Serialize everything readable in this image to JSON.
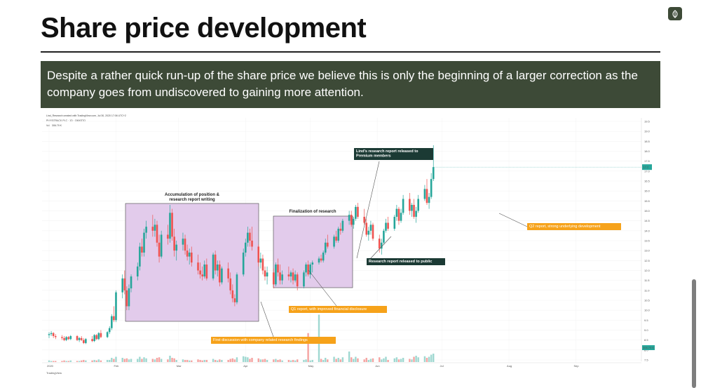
{
  "slide": {
    "title": "Share price development",
    "subtitle": "Despite a rather quick run-up of the share price we believe this is only the beginning of a larger correction as the company goes from undiscovered to gaining more attention."
  },
  "chart_data": {
    "type": "candlestick",
    "header_line1": "Lind_Research created with TradingView.com, Jul 30, 2020 17:06 UTC+2",
    "header_line2": "PHYSITRACK PLC · 1D · OMXSTO",
    "volume_label": "Vol",
    "volume_value": "306.79 K",
    "last_price_tag": "17.2",
    "last_volume_tag": "306.79 K",
    "watermark": "TradingView",
    "ylim": [
      7.5,
      19.5
    ],
    "y_ticks": [
      "19.5",
      "19.0",
      "18.5",
      "18.0",
      "17.5",
      "17.0",
      "16.5",
      "16.0",
      "15.5",
      "15.0",
      "14.5",
      "14.0",
      "13.5",
      "13.0",
      "12.5",
      "12.0",
      "11.5",
      "11.0",
      "10.5",
      "10.0",
      "9.5",
      "9.0",
      "8.5",
      "8.0",
      "7.5"
    ],
    "x_ticks": [
      {
        "label": "2020",
        "day": 0
      },
      {
        "label": "Feb",
        "day": 31
      },
      {
        "label": "Mar",
        "day": 60
      },
      {
        "label": "Apr",
        "day": 91
      },
      {
        "label": "May",
        "day": 121
      },
      {
        "label": "Jun",
        "day": 152
      },
      {
        "label": "Jul",
        "day": 182
      },
      {
        "label": "Aug",
        "day": 213
      },
      {
        "label": "Sep",
        "day": 244
      }
    ],
    "colors": {
      "up": "#26a69a",
      "down": "#ef5350",
      "vol_up": "#9fd8d1",
      "vol_down": "#f5a3a1",
      "box": "#e2cbeb",
      "box_border": "#444444",
      "dark_note": "#1b3a34",
      "orange_note": "#f6a21a"
    },
    "candles": [
      [
        0,
        8.75,
        8.9,
        8.6,
        8.8
      ],
      [
        1,
        8.8,
        8.95,
        8.7,
        8.85
      ],
      [
        2,
        8.85,
        8.9,
        8.6,
        8.7
      ],
      [
        3,
        8.7,
        8.8,
        8.55,
        8.65
      ],
      [
        6,
        8.65,
        8.75,
        8.5,
        8.6
      ],
      [
        7,
        8.6,
        8.7,
        8.45,
        8.5
      ],
      [
        8,
        8.5,
        8.7,
        8.45,
        8.65
      ],
      [
        9,
        8.65,
        8.7,
        8.5,
        8.55
      ],
      [
        10,
        8.55,
        8.75,
        8.5,
        8.7
      ],
      [
        13,
        8.7,
        8.75,
        8.45,
        8.5
      ],
      [
        14,
        8.5,
        8.65,
        8.4,
        8.6
      ],
      [
        15,
        8.6,
        8.7,
        8.45,
        8.5
      ],
      [
        16,
        8.5,
        8.6,
        8.3,
        8.35
      ],
      [
        17,
        8.35,
        8.6,
        8.3,
        8.55
      ],
      [
        20,
        8.55,
        8.7,
        8.4,
        8.45
      ],
      [
        21,
        8.45,
        8.8,
        8.4,
        8.75
      ],
      [
        22,
        8.75,
        8.8,
        8.5,
        8.55
      ],
      [
        23,
        8.55,
        8.9,
        8.5,
        8.85
      ],
      [
        24,
        8.85,
        9.0,
        8.6,
        8.65
      ],
      [
        27,
        8.65,
        8.95,
        8.6,
        8.9
      ],
      [
        28,
        8.9,
        9.2,
        8.8,
        9.1
      ],
      [
        29,
        9.1,
        9.8,
        9.0,
        9.7
      ],
      [
        30,
        9.7,
        10.2,
        9.4,
        9.5
      ],
      [
        31,
        9.5,
        11.0,
        9.4,
        10.9
      ],
      [
        34,
        10.9,
        11.8,
        10.6,
        11.6
      ],
      [
        35,
        11.6,
        12.0,
        10.8,
        11.0
      ],
      [
        36,
        11.0,
        11.2,
        10.0,
        10.2
      ],
      [
        37,
        10.2,
        11.3,
        10.0,
        11.1
      ],
      [
        38,
        11.1,
        11.8,
        10.9,
        11.7
      ],
      [
        41,
        11.7,
        12.4,
        11.5,
        12.2
      ],
      [
        42,
        12.2,
        13.4,
        12.0,
        13.2
      ],
      [
        43,
        13.2,
        13.6,
        12.7,
        12.9
      ],
      [
        44,
        12.9,
        14.1,
        12.7,
        13.9
      ],
      [
        45,
        13.9,
        14.5,
        13.6,
        14.2
      ],
      [
        48,
        14.2,
        14.8,
        13.7,
        14.0
      ],
      [
        49,
        14.0,
        14.6,
        13.7,
        14.3
      ],
      [
        50,
        14.3,
        14.5,
        13.2,
        13.4
      ],
      [
        51,
        13.4,
        13.8,
        12.4,
        12.7
      ],
      [
        52,
        12.7,
        14.0,
        12.6,
        13.8
      ],
      [
        55,
        13.8,
        14.3,
        13.3,
        13.6
      ],
      [
        56,
        13.6,
        15.3,
        13.4,
        14.9
      ],
      [
        57,
        14.9,
        15.1,
        13.5,
        13.7
      ],
      [
        58,
        13.7,
        14.1,
        12.7,
        13.0
      ],
      [
        59,
        13.0,
        13.5,
        12.5,
        13.3
      ],
      [
        62,
        13.3,
        13.9,
        13.0,
        13.6
      ],
      [
        63,
        13.6,
        13.8,
        12.8,
        13.0
      ],
      [
        64,
        13.0,
        13.3,
        12.5,
        12.7
      ],
      [
        65,
        12.7,
        13.1,
        12.3,
        12.9
      ],
      [
        66,
        12.9,
        13.2,
        12.2,
        12.4
      ],
      [
        69,
        12.4,
        12.8,
        11.8,
        12.0
      ],
      [
        70,
        12.0,
        12.4,
        11.6,
        11.8
      ],
      [
        71,
        11.8,
        12.2,
        11.5,
        11.7
      ],
      [
        72,
        11.7,
        12.5,
        11.6,
        12.3
      ],
      [
        73,
        12.3,
        12.6,
        11.5,
        11.6
      ],
      [
        76,
        11.6,
        12.9,
        11.5,
        12.8
      ],
      [
        77,
        12.8,
        13.0,
        11.8,
        12.0
      ],
      [
        78,
        12.0,
        12.5,
        11.7,
        12.3
      ],
      [
        79,
        12.3,
        12.5,
        11.2,
        11.4
      ],
      [
        80,
        11.4,
        12.2,
        11.3,
        12.1
      ],
      [
        83,
        12.1,
        12.4,
        11.4,
        11.6
      ],
      [
        84,
        11.6,
        11.9,
        10.8,
        11.0
      ],
      [
        85,
        11.0,
        11.3,
        10.4,
        10.6
      ],
      [
        86,
        10.6,
        10.8,
        10.2,
        10.4
      ],
      [
        87,
        10.4,
        11.9,
        10.3,
        11.8
      ],
      [
        90,
        11.8,
        13.1,
        11.7,
        12.9
      ],
      [
        91,
        12.9,
        13.6,
        12.7,
        13.4
      ],
      [
        92,
        13.4,
        14.2,
        13.2,
        13.9
      ],
      [
        93,
        13.9,
        14.1,
        13.2,
        13.5
      ],
      [
        94,
        13.5,
        14.2,
        13.0,
        13.2
      ],
      [
        97,
        13.2,
        13.3,
        12.2,
        12.4
      ],
      [
        98,
        12.4,
        12.9,
        12.1,
        12.6
      ],
      [
        99,
        12.6,
        12.8,
        11.8,
        12.0
      ],
      [
        100,
        12.0,
        12.2,
        11.5,
        11.7
      ],
      [
        101,
        11.7,
        12.2,
        11.3,
        11.9
      ],
      [
        104,
        11.9,
        12.1,
        11.1,
        11.3
      ],
      [
        105,
        11.3,
        12.4,
        11.2,
        12.3
      ],
      [
        106,
        12.3,
        12.6,
        11.7,
        11.9
      ],
      [
        107,
        11.9,
        12.3,
        11.3,
        11.5
      ],
      [
        108,
        11.5,
        12.0,
        11.3,
        11.8
      ],
      [
        111,
        11.8,
        12.2,
        11.5,
        11.7
      ],
      [
        112,
        11.7,
        12.0,
        11.4,
        11.9
      ],
      [
        113,
        11.9,
        12.1,
        11.3,
        11.5
      ],
      [
        114,
        11.5,
        12.0,
        11.4,
        11.8
      ],
      [
        115,
        11.8,
        11.9,
        11.0,
        11.2
      ],
      [
        118,
        11.2,
        12.0,
        11.1,
        11.9
      ],
      [
        119,
        11.9,
        12.4,
        11.7,
        12.3
      ],
      [
        120,
        12.3,
        12.5,
        11.7,
        11.8
      ],
      [
        121,
        11.8,
        12.4,
        11.6,
        12.3
      ],
      [
        122,
        12.3,
        12.5,
        11.9,
        12.4
      ],
      [
        125,
        12.4,
        12.7,
        12.3,
        12.6
      ],
      [
        126,
        12.6,
        12.8,
        12.4,
        12.5
      ],
      [
        127,
        12.5,
        13.0,
        12.4,
        12.9
      ],
      [
        128,
        12.9,
        13.6,
        12.8,
        13.4
      ],
      [
        129,
        13.4,
        13.8,
        13.1,
        13.2
      ],
      [
        132,
        13.2,
        13.8,
        13.1,
        13.7
      ],
      [
        133,
        13.7,
        14.0,
        13.4,
        13.5
      ],
      [
        134,
        13.5,
        14.2,
        13.4,
        14.1
      ],
      [
        135,
        14.1,
        14.4,
        13.8,
        14.0
      ],
      [
        136,
        14.0,
        14.6,
        13.9,
        14.5
      ],
      [
        139,
        14.5,
        15.0,
        14.3,
        14.8
      ],
      [
        140,
        14.8,
        15.0,
        14.2,
        14.3
      ],
      [
        141,
        14.3,
        14.7,
        14.1,
        14.6
      ],
      [
        142,
        14.6,
        15.3,
        14.5,
        15.2
      ],
      [
        143,
        15.2,
        15.4,
        14.6,
        14.7
      ],
      [
        146,
        14.7,
        15.1,
        14.3,
        14.4
      ],
      [
        147,
        14.4,
        14.6,
        13.7,
        13.8
      ],
      [
        148,
        13.8,
        14.2,
        13.5,
        14.0
      ],
      [
        149,
        14.0,
        14.5,
        13.8,
        14.3
      ],
      [
        150,
        14.3,
        14.4,
        13.5,
        13.6
      ],
      [
        153,
        13.6,
        13.8,
        12.9,
        13.1
      ],
      [
        154,
        13.1,
        13.6,
        12.8,
        13.4
      ],
      [
        155,
        13.4,
        14.1,
        13.3,
        14.0
      ],
      [
        156,
        14.0,
        14.6,
        13.9,
        14.4
      ],
      [
        157,
        14.4,
        14.7,
        14.0,
        14.1
      ],
      [
        160,
        14.1,
        14.8,
        14.0,
        14.7
      ],
      [
        161,
        14.7,
        15.3,
        14.5,
        15.1
      ],
      [
        162,
        15.1,
        15.2,
        14.3,
        14.5
      ],
      [
        163,
        14.5,
        15.1,
        14.4,
        14.9
      ],
      [
        164,
        14.9,
        15.8,
        14.8,
        15.6
      ],
      [
        167,
        15.6,
        15.9,
        14.8,
        15.0
      ],
      [
        168,
        15.0,
        15.4,
        14.7,
        15.3
      ],
      [
        169,
        15.3,
        15.6,
        14.6,
        14.7
      ],
      [
        170,
        14.7,
        15.2,
        14.4,
        15.0
      ],
      [
        171,
        15.0,
        15.8,
        14.9,
        15.6
      ],
      [
        174,
        15.6,
        16.3,
        15.5,
        16.1
      ],
      [
        175,
        16.1,
        16.6,
        15.3,
        15.4
      ],
      [
        176,
        15.4,
        15.9,
        15.1,
        15.7
      ],
      [
        177,
        15.7,
        16.9,
        15.6,
        16.6
      ],
      [
        178,
        16.6,
        18.3,
        16.5,
        17.2
      ]
    ],
    "volumes": [
      [
        0,
        3,
        1
      ],
      [
        1,
        2,
        1
      ],
      [
        2,
        2,
        0
      ],
      [
        3,
        2,
        0
      ],
      [
        6,
        2,
        0
      ],
      [
        7,
        3,
        0
      ],
      [
        8,
        2,
        1
      ],
      [
        9,
        2,
        0
      ],
      [
        10,
        3,
        1
      ],
      [
        13,
        2,
        0
      ],
      [
        14,
        2,
        1
      ],
      [
        15,
        3,
        0
      ],
      [
        16,
        4,
        0
      ],
      [
        17,
        3,
        1
      ],
      [
        20,
        3,
        0
      ],
      [
        21,
        4,
        1
      ],
      [
        22,
        3,
        0
      ],
      [
        23,
        5,
        1
      ],
      [
        24,
        3,
        0
      ],
      [
        27,
        4,
        1
      ],
      [
        28,
        4,
        1
      ],
      [
        29,
        8,
        1
      ],
      [
        30,
        6,
        0
      ],
      [
        31,
        10,
        1
      ],
      [
        34,
        8,
        1
      ],
      [
        35,
        6,
        0
      ],
      [
        36,
        7,
        0
      ],
      [
        37,
        5,
        1
      ],
      [
        38,
        6,
        1
      ],
      [
        41,
        6,
        1
      ],
      [
        42,
        10,
        1
      ],
      [
        43,
        6,
        0
      ],
      [
        44,
        9,
        1
      ],
      [
        45,
        7,
        1
      ],
      [
        48,
        6,
        0
      ],
      [
        49,
        5,
        1
      ],
      [
        50,
        8,
        0
      ],
      [
        51,
        9,
        0
      ],
      [
        52,
        6,
        1
      ],
      [
        55,
        5,
        0
      ],
      [
        56,
        12,
        1
      ],
      [
        57,
        8,
        0
      ],
      [
        58,
        7,
        0
      ],
      [
        59,
        4,
        1
      ],
      [
        62,
        5,
        1
      ],
      [
        63,
        4,
        0
      ],
      [
        64,
        4,
        0
      ],
      [
        65,
        3,
        1
      ],
      [
        66,
        3,
        0
      ],
      [
        69,
        5,
        0
      ],
      [
        70,
        4,
        0
      ],
      [
        71,
        3,
        0
      ],
      [
        72,
        4,
        1
      ],
      [
        73,
        4,
        0
      ],
      [
        76,
        6,
        1
      ],
      [
        77,
        4,
        0
      ],
      [
        78,
        3,
        1
      ],
      [
        79,
        5,
        0
      ],
      [
        80,
        4,
        1
      ],
      [
        83,
        4,
        0
      ],
      [
        84,
        6,
        0
      ],
      [
        85,
        7,
        0
      ],
      [
        86,
        5,
        0
      ],
      [
        87,
        9,
        1
      ],
      [
        90,
        11,
        1
      ],
      [
        91,
        10,
        1
      ],
      [
        92,
        9,
        1
      ],
      [
        93,
        6,
        0
      ],
      [
        94,
        8,
        0
      ],
      [
        97,
        7,
        0
      ],
      [
        98,
        5,
        1
      ],
      [
        99,
        5,
        0
      ],
      [
        100,
        6,
        0
      ],
      [
        101,
        4,
        1
      ],
      [
        104,
        5,
        0
      ],
      [
        105,
        6,
        1
      ],
      [
        106,
        4,
        0
      ],
      [
        107,
        5,
        0
      ],
      [
        108,
        3,
        1
      ],
      [
        111,
        4,
        0
      ],
      [
        112,
        3,
        1
      ],
      [
        113,
        4,
        0
      ],
      [
        114,
        3,
        1
      ],
      [
        115,
        5,
        0
      ],
      [
        118,
        4,
        1
      ],
      [
        119,
        5,
        1
      ],
      [
        120,
        55,
        0
      ],
      [
        121,
        3,
        1
      ],
      [
        122,
        4,
        1
      ],
      [
        125,
        90,
        1
      ],
      [
        126,
        6,
        0
      ],
      [
        127,
        4,
        1
      ],
      [
        128,
        8,
        1
      ],
      [
        129,
        5,
        0
      ],
      [
        132,
        10,
        1
      ],
      [
        133,
        6,
        0
      ],
      [
        134,
        8,
        1
      ],
      [
        135,
        5,
        0
      ],
      [
        136,
        9,
        1
      ],
      [
        139,
        20,
        1
      ],
      [
        140,
        9,
        0
      ],
      [
        141,
        6,
        1
      ],
      [
        142,
        10,
        1
      ],
      [
        143,
        7,
        0
      ],
      [
        146,
        5,
        0
      ],
      [
        147,
        8,
        0
      ],
      [
        148,
        4,
        1
      ],
      [
        149,
        6,
        1
      ],
      [
        150,
        7,
        0
      ],
      [
        153,
        9,
        0
      ],
      [
        154,
        5,
        1
      ],
      [
        155,
        7,
        1
      ],
      [
        156,
        10,
        1
      ],
      [
        157,
        4,
        0
      ],
      [
        160,
        7,
        1
      ],
      [
        161,
        9,
        1
      ],
      [
        162,
        5,
        0
      ],
      [
        163,
        6,
        1
      ],
      [
        164,
        8,
        1
      ],
      [
        167,
        6,
        0
      ],
      [
        168,
        5,
        1
      ],
      [
        169,
        10,
        0
      ],
      [
        170,
        12,
        1
      ],
      [
        171,
        9,
        1
      ],
      [
        174,
        11,
        1
      ],
      [
        175,
        8,
        0
      ],
      [
        176,
        10,
        1
      ],
      [
        177,
        14,
        1
      ],
      [
        178,
        16,
        1
      ]
    ],
    "annotations": [
      {
        "text": "Accumulation of position &",
        "sub": "research report writing"
      },
      {
        "text": "Finalization of research"
      },
      {
        "text": "Lind's research report released to",
        "sub": "Premium members"
      },
      {
        "text": "Research report released to public"
      },
      {
        "text": "Q2 report, strong underlying development"
      },
      {
        "text": "Q1 report, with improved financial disclosure"
      },
      {
        "text": "First discussion with company related research findings"
      }
    ]
  }
}
